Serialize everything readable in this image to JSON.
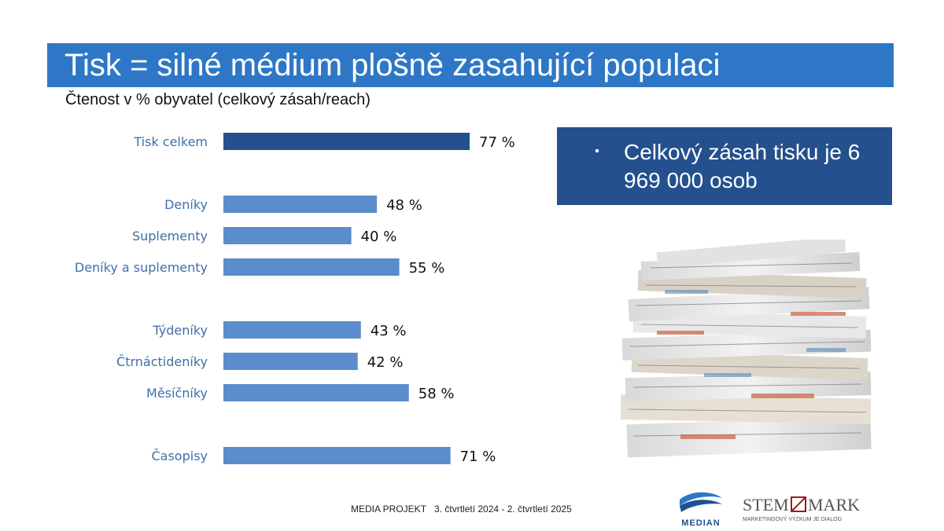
{
  "header": {
    "title": "Tisk = silné médium plošně zasahující populaci",
    "subtitle": "Čtenost v % obyvatel (celkový zásah/reach)"
  },
  "callout": {
    "bullet": "▪",
    "text": "Celkový zásah tisku je 6 969 000 osob"
  },
  "footer": {
    "project": "MEDIA PROJEKT",
    "period": "3. čtvrtletí 2024 - 2. čtvrtletí 2025"
  },
  "logos": {
    "median": "MEDIAN",
    "stem_left": "STEM",
    "stem_right": "MARK",
    "stem_tagline": "MARKETINGOVÝ VÝZKUM JE DIALOG"
  },
  "colors": {
    "title_bar": "#2e77c6",
    "bar_highlight": "#24508d",
    "bar_default": "#5b8ccb",
    "callout_bg": "#24508d"
  },
  "chart_data": {
    "type": "bar",
    "orientation": "horizontal",
    "title": "Čtenost v % obyvatel (celkový zásah/reach)",
    "categories": [
      "Tisk celkem",
      "Deníky",
      "Suplementy",
      "Deníky a suplementy",
      "Týdeníky",
      "Čtrnáctideníky",
      "Měsíčníky",
      "Časopisy"
    ],
    "values": [
      77,
      48,
      40,
      55,
      43,
      42,
      58,
      71
    ],
    "value_labels": [
      "77 %",
      "48 %",
      "40 %",
      "55 %",
      "43 %",
      "42 %",
      "58 %",
      "71 %"
    ],
    "highlight_index": 0,
    "xlim": [
      0,
      100
    ],
    "grid": false,
    "legend": "none"
  }
}
